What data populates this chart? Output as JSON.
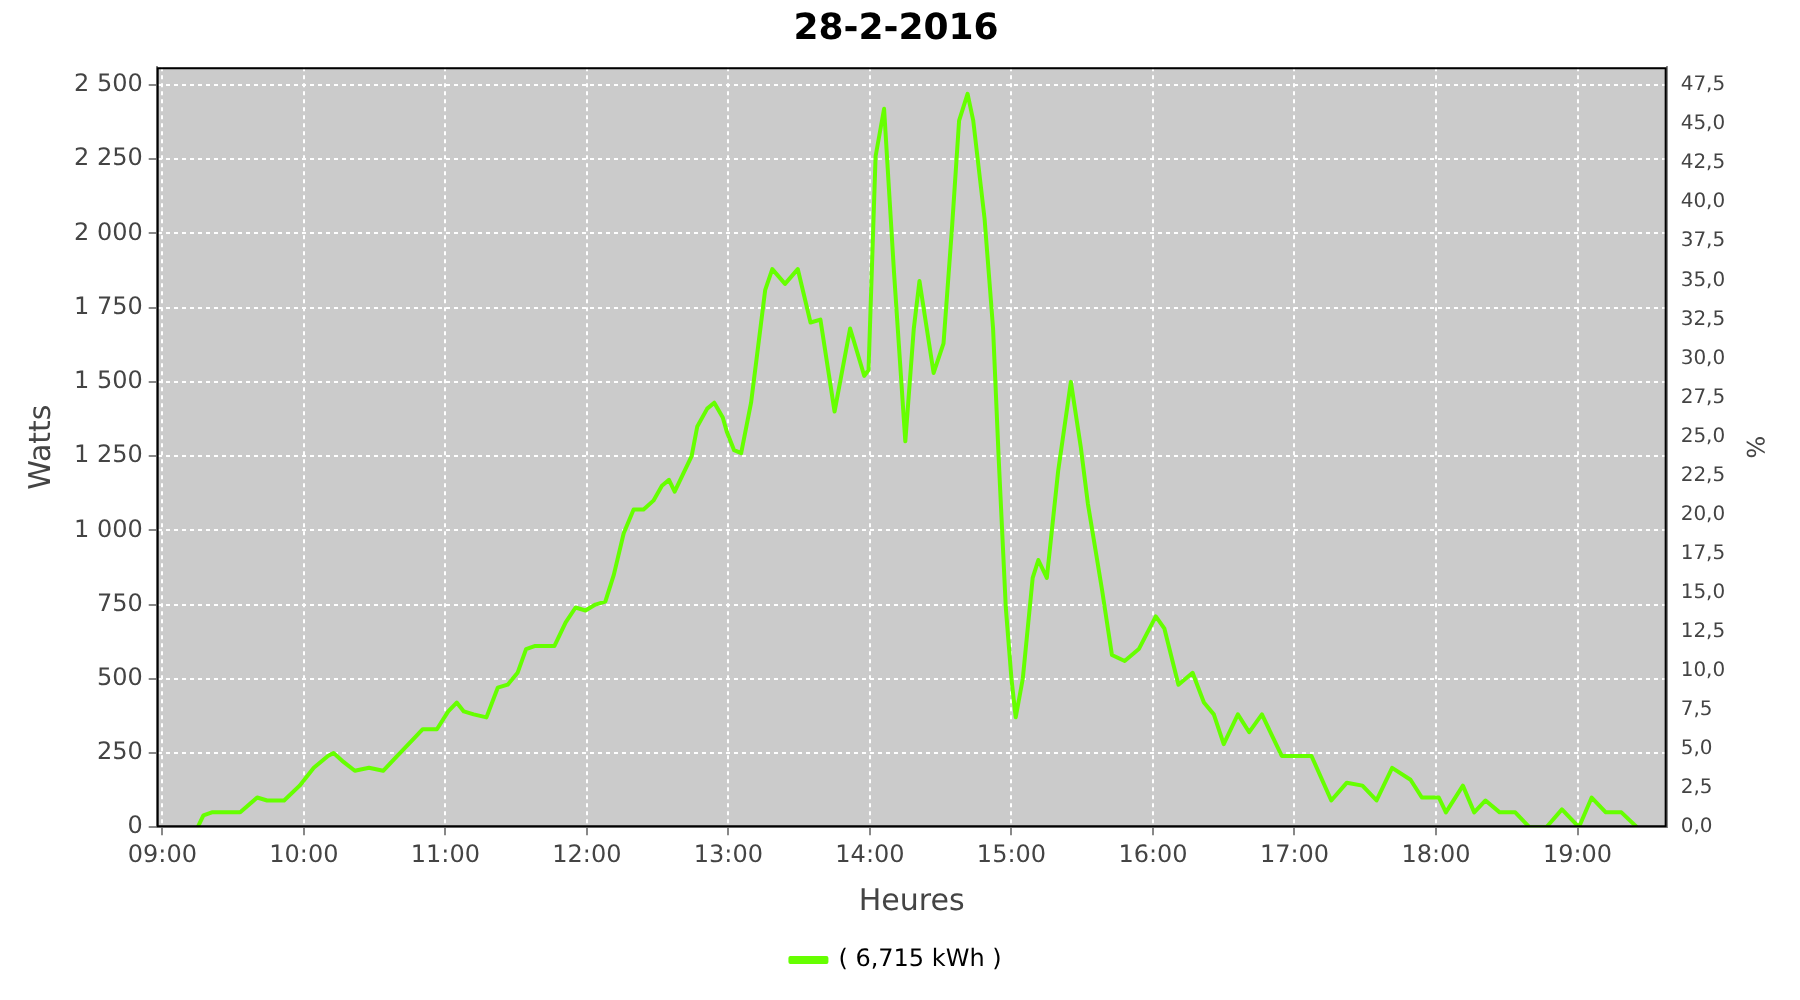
{
  "chart_data": {
    "type": "line",
    "title": "28-2-2016",
    "xlabel": "Heures",
    "ylabel": "Watts",
    "y2label": "%",
    "xlim": [
      8.96,
      19.63
    ],
    "xticks": [
      {
        "value": 9,
        "label": "09:00"
      },
      {
        "value": 10,
        "label": "10:00"
      },
      {
        "value": 11,
        "label": "11:00"
      },
      {
        "value": 12,
        "label": "12:00"
      },
      {
        "value": 13,
        "label": "13:00"
      },
      {
        "value": 14,
        "label": "14:00"
      },
      {
        "value": 15,
        "label": "15:00"
      },
      {
        "value": 16,
        "label": "16:00"
      },
      {
        "value": 17,
        "label": "17:00"
      },
      {
        "value": 18,
        "label": "18:00"
      },
      {
        "value": 19,
        "label": "19:00"
      }
    ],
    "ylim": [
      0,
      2560
    ],
    "yticks": [
      0,
      250,
      500,
      750,
      {
        "value": 1000,
        "label": "1 000"
      },
      {
        "value": 1250,
        "label": "1 250"
      },
      {
        "value": 1500,
        "label": "1 500"
      },
      {
        "value": 1750,
        "label": "1 750"
      },
      {
        "value": 2000,
        "label": "2 000"
      },
      {
        "value": 2250,
        "label": "2 250"
      },
      {
        "value": 2500,
        "label": "2 500"
      }
    ],
    "y2lim": [
      0,
      48.64
    ],
    "y2ticks": [
      {
        "value": 0,
        "label": "0,0"
      },
      {
        "value": 2.5,
        "label": "2,5"
      },
      {
        "value": 5,
        "label": "5,0"
      },
      {
        "value": 7.5,
        "label": "7,5"
      },
      {
        "value": 10,
        "label": "10,0"
      },
      {
        "value": 12.5,
        "label": "12,5"
      },
      {
        "value": 15,
        "label": "15,0"
      },
      {
        "value": 17.5,
        "label": "17,5"
      },
      {
        "value": 20,
        "label": "20,0"
      },
      {
        "value": 22.5,
        "label": "22,5"
      },
      {
        "value": 25,
        "label": "25,0"
      },
      {
        "value": 27.5,
        "label": "27,5"
      },
      {
        "value": 30,
        "label": "30,0"
      },
      {
        "value": 32.5,
        "label": "32,5"
      },
      {
        "value": 35,
        "label": "35,0"
      },
      {
        "value": 37.5,
        "label": "37,5"
      },
      {
        "value": 40,
        "label": "40,0"
      },
      {
        "value": 42.5,
        "label": "42,5"
      },
      {
        "value": 45,
        "label": "45,0"
      },
      {
        "value": 47.5,
        "label": "47,5"
      }
    ],
    "grid": true,
    "legend": "bottom",
    "marker": "none",
    "line_style": "solid",
    "series": [
      {
        "name": "( 6,715 kWh )",
        "color": "#66ff00",
        "x": [
          9.25,
          9.29,
          9.35,
          9.55,
          9.67,
          9.74,
          9.86,
          9.97,
          10.07,
          10.17,
          10.21,
          10.28,
          10.36,
          10.46,
          10.56,
          10.66,
          10.78,
          10.84,
          10.94,
          11.02,
          11.08,
          11.13,
          11.2,
          11.29,
          11.37,
          11.44,
          11.51,
          11.57,
          11.63,
          11.71,
          11.77,
          11.85,
          11.92,
          11.99,
          12.06,
          12.13,
          12.19,
          12.26,
          12.33,
          12.4,
          12.47,
          12.53,
          12.58,
          12.62,
          12.68,
          12.74,
          12.78,
          12.85,
          12.9,
          12.96,
          12.99,
          13.04,
          13.09,
          13.16,
          13.26,
          13.31,
          13.4,
          13.49,
          13.58,
          13.65,
          13.75,
          13.86,
          13.96,
          13.99,
          14.04,
          14.1,
          14.17,
          14.25,
          14.31,
          14.35,
          14.45,
          14.52,
          14.58,
          14.63,
          14.69,
          14.73,
          14.81,
          14.87,
          14.91,
          14.96,
          15.0,
          15.03,
          15.08,
          15.15,
          15.19,
          15.25,
          15.33,
          15.42,
          15.49,
          15.54,
          15.64,
          15.71,
          15.8,
          15.9,
          16.02,
          16.08,
          16.18,
          16.28,
          16.36,
          16.43,
          16.5,
          16.6,
          16.68,
          16.77,
          16.91,
          17.12,
          17.26,
          17.37,
          17.48,
          17.58,
          17.69,
          17.82,
          17.9,
          18.02,
          18.07,
          18.19,
          18.27,
          18.35,
          18.45,
          18.56,
          18.66,
          18.78,
          18.89,
          19.01,
          19.1,
          19.2,
          19.31,
          19.42
        ],
        "values": [
          0,
          40,
          50,
          50,
          100,
          90,
          90,
          140,
          200,
          240,
          250,
          220,
          190,
          200,
          190,
          240,
          300,
          330,
          330,
          390,
          420,
          390,
          380,
          370,
          470,
          480,
          520,
          600,
          610,
          610,
          610,
          690,
          740,
          730,
          750,
          760,
          850,
          990,
          1070,
          1070,
          1100,
          1150,
          1170,
          1130,
          1190,
          1250,
          1350,
          1410,
          1430,
          1380,
          1330,
          1270,
          1260,
          1430,
          1810,
          1880,
          1830,
          1880,
          1700,
          1710,
          1400,
          1680,
          1520,
          1540,
          2260,
          2420,
          1870,
          1300,
          1680,
          1840,
          1530,
          1630,
          2020,
          2380,
          2470,
          2380,
          2050,
          1680,
          1240,
          740,
          500,
          370,
          500,
          840,
          900,
          840,
          1200,
          1500,
          1280,
          1090,
          800,
          580,
          560,
          600,
          710,
          670,
          480,
          520,
          420,
          380,
          280,
          380,
          320,
          380,
          240,
          240,
          90,
          150,
          140,
          90,
          200,
          160,
          100,
          100,
          50,
          140,
          50,
          90,
          50,
          50,
          0,
          0,
          60,
          0,
          100,
          50,
          50,
          0
        ]
      }
    ]
  }
}
